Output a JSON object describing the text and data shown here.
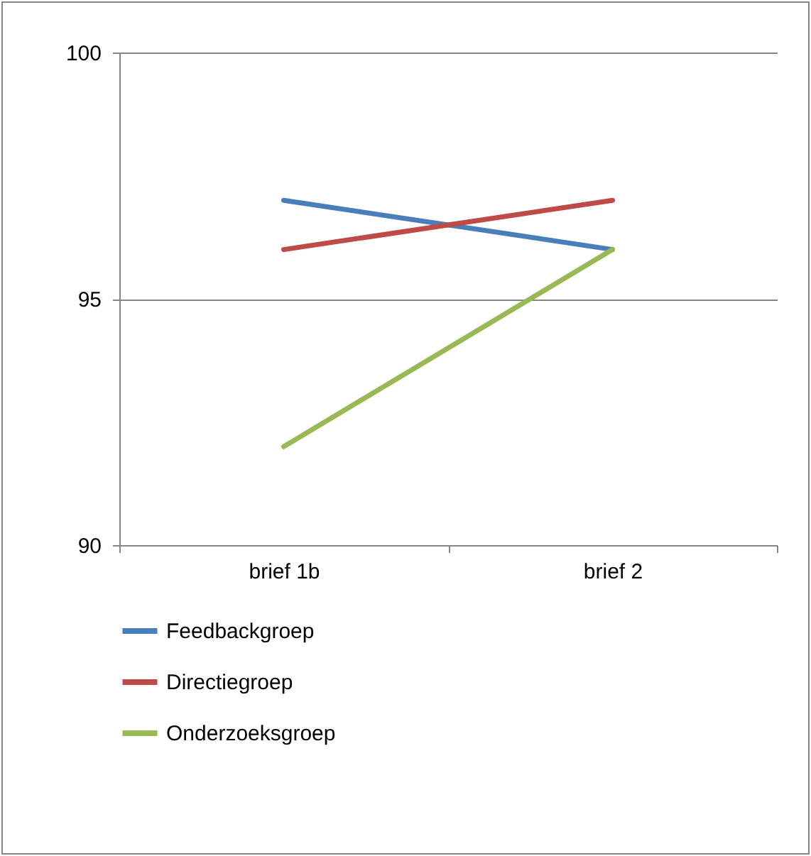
{
  "chart_data": {
    "type": "line",
    "categories": [
      "brief 1b",
      "brief 2"
    ],
    "series": [
      {
        "name": "Feedbackgroep",
        "color": "#4a7ebb",
        "values": [
          97,
          96
        ]
      },
      {
        "name": "Directiegroep",
        "color": "#be4b48",
        "values": [
          96,
          97
        ]
      },
      {
        "name": "Onderzoeksgroep",
        "color": "#98b954",
        "values": [
          92,
          96
        ]
      }
    ],
    "ylim": [
      90,
      100
    ],
    "yticks": [
      90,
      95,
      100
    ],
    "grid": "y",
    "legend": "bottom",
    "marker": "none",
    "line_style": "solid"
  }
}
